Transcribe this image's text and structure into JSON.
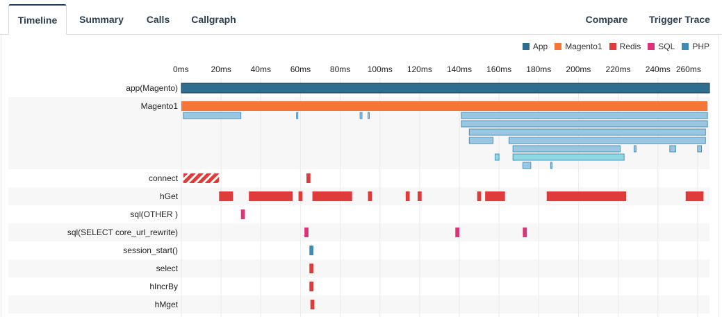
{
  "tabs": [
    {
      "id": "timeline",
      "label": "Timeline",
      "active": true
    },
    {
      "id": "summary",
      "label": "Summary",
      "active": false
    },
    {
      "id": "calls",
      "label": "Calls",
      "active": false
    },
    {
      "id": "callgraph",
      "label": "Callgraph",
      "active": false
    }
  ],
  "actions": {
    "compare": "Compare",
    "trigger": "Trigger Trace"
  },
  "legend": [
    {
      "label": "App",
      "color": "#2e6d8e"
    },
    {
      "label": "Magento1",
      "color": "#f47535"
    },
    {
      "label": "Redis",
      "color": "#df3b3b"
    },
    {
      "label": "SQL",
      "color": "#e0307a"
    },
    {
      "label": "PHP",
      "color": "#3f8bb5"
    }
  ],
  "chart_data": {
    "type": "timeline",
    "x_unit": "ms",
    "xlim": [
      0,
      266
    ],
    "ticks": [
      "0ms",
      "20ms",
      "40ms",
      "60ms",
      "80ms",
      "100ms",
      "120ms",
      "140ms",
      "160ms",
      "180ms",
      "200ms",
      "220ms",
      "240ms",
      "260ms"
    ],
    "rows": [
      {
        "label": "app(Magento)",
        "category": "App",
        "spans": [
          [
            0,
            266
          ]
        ]
      },
      {
        "label": "Magento1",
        "category": "Magento1",
        "spans": [
          [
            0,
            265
          ]
        ],
        "children": [
          [
            [
              1,
              30
            ],
            [
              58,
              58.6
            ],
            [
              90,
              91
            ],
            [
              94,
              94.5
            ],
            [
              141,
              265
            ]
          ],
          [
            [
              141,
              265
            ]
          ],
          [
            [
              145,
              264
            ]
          ],
          [
            [
              145,
              157
            ],
            [
              165,
              264
            ]
          ],
          [
            [
              167,
              221
            ],
            [
              228,
              229
            ],
            [
              246,
              249
            ],
            [
              260,
              262
            ]
          ],
          [
            [
              158,
              160
            ],
            [
              167,
              223
            ]
          ],
          [
            [
              172,
              176
            ],
            [
              186,
              186.5
            ]
          ]
        ]
      },
      {
        "label": "connect",
        "category": "Redis",
        "spans": [
          [
            1,
            19
          ],
          [
            63,
            65
          ]
        ]
      },
      {
        "label": "hGet",
        "category": "Redis",
        "spans": [
          [
            19,
            26
          ],
          [
            34,
            56
          ],
          [
            59,
            61
          ],
          [
            66,
            86
          ],
          [
            94,
            96
          ],
          [
            113,
            115
          ],
          [
            119,
            121
          ],
          [
            149,
            151
          ],
          [
            153,
            163
          ],
          [
            184,
            224
          ],
          [
            254,
            263
          ]
        ]
      },
      {
        "label": "sql(OTHER )",
        "category": "SQL",
        "spans": [
          [
            30,
            32
          ]
        ]
      },
      {
        "label": "sql(SELECT core_url_rewrite)",
        "category": "SQL",
        "spans": [
          [
            62,
            64
          ],
          [
            138,
            140
          ],
          [
            172,
            174
          ]
        ]
      },
      {
        "label": "session_start()",
        "category": "PHP",
        "spans": [
          [
            64.5,
            66.5
          ]
        ]
      },
      {
        "label": "select",
        "category": "Redis",
        "spans": [
          [
            64.5,
            66.5
          ]
        ]
      },
      {
        "label": "hIncrBy",
        "category": "Redis",
        "spans": [
          [
            64.5,
            66.5
          ]
        ]
      },
      {
        "label": "hMget",
        "category": "Redis",
        "spans": [
          [
            65,
            67
          ]
        ]
      }
    ]
  }
}
